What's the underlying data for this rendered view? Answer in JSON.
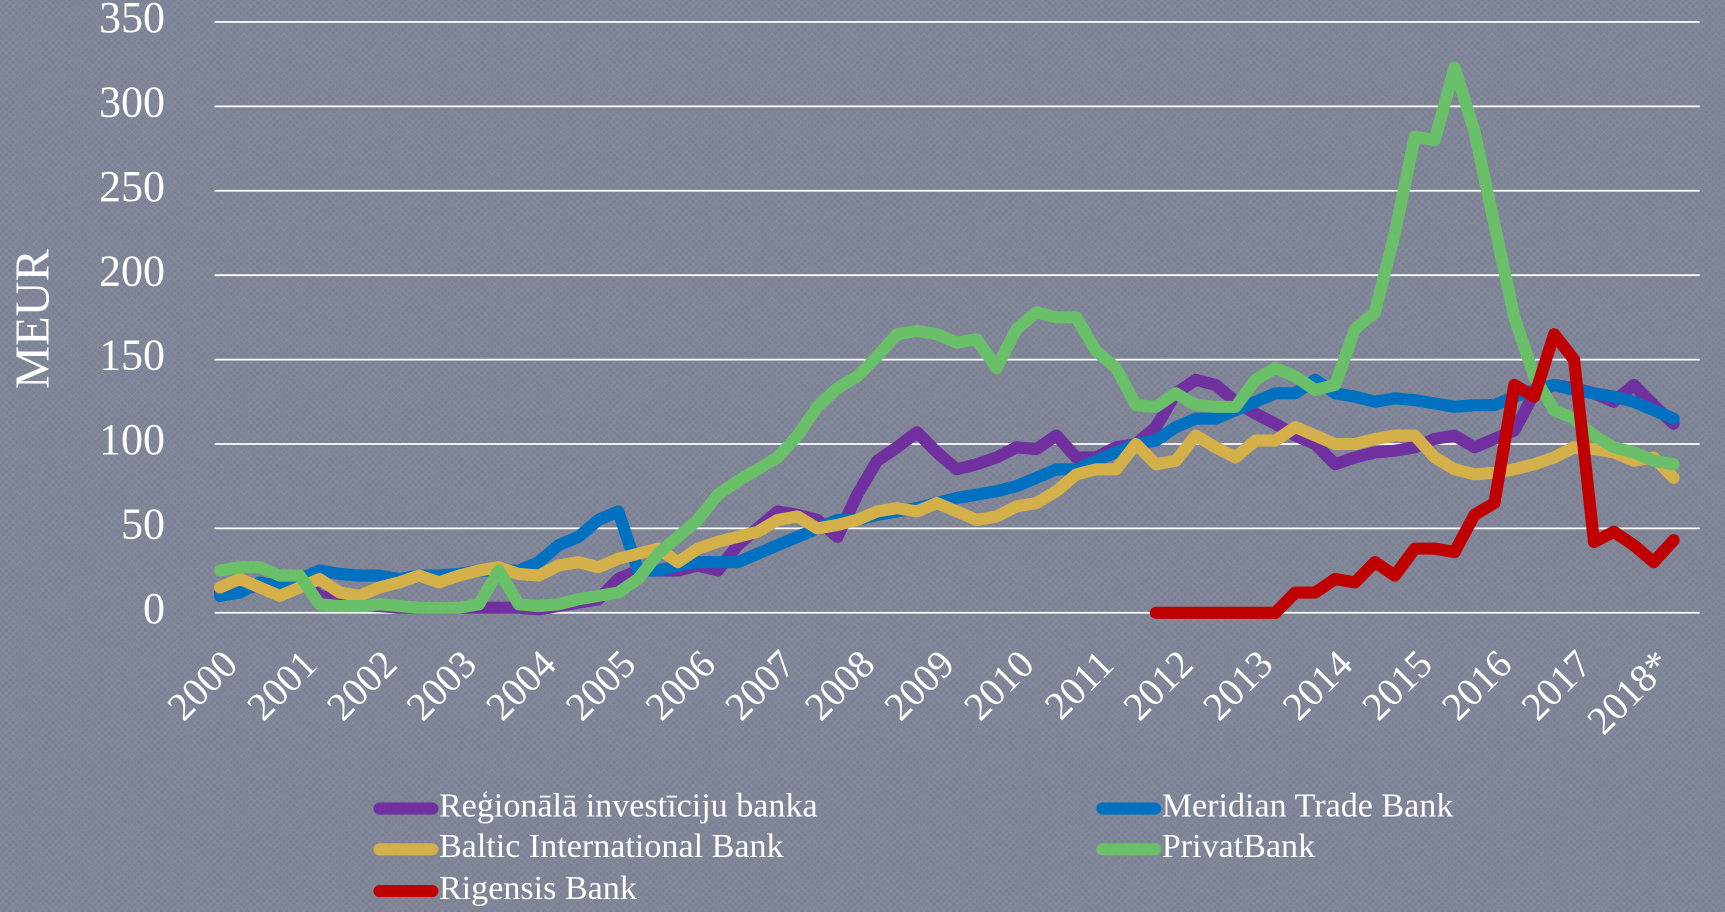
{
  "chart_data": {
    "type": "line",
    "y_label": "MEUR",
    "categories": [
      "2000",
      null,
      null,
      null,
      "2001",
      null,
      null,
      null,
      "2002",
      null,
      null,
      null,
      "2003",
      null,
      null,
      null,
      "2004",
      null,
      null,
      null,
      "2005",
      null,
      null,
      null,
      "2006",
      null,
      null,
      null,
      "2007",
      null,
      null,
      null,
      "2008",
      null,
      null,
      null,
      "2009",
      null,
      null,
      null,
      "2010",
      null,
      null,
      null,
      "2011",
      null,
      null,
      null,
      "2012",
      null,
      null,
      null,
      "2013",
      null,
      null,
      null,
      "2014",
      null,
      null,
      null,
      "2015",
      null,
      null,
      null,
      "2016",
      null,
      null,
      null,
      "2017",
      null,
      null,
      null,
      "2018*",
      null
    ],
    "ylim": [
      0,
      350
    ],
    "yticks": [
      0,
      50,
      100,
      150,
      200,
      250,
      300,
      350
    ],
    "grid": true,
    "legend": "bottom",
    "series": [
      {
        "name": "Reģionālā investīciju banka",
        "color": "#7030a0",
        "values": [
          12,
          14,
          16,
          18,
          20,
          10,
          8,
          5,
          4,
          3,
          3,
          3,
          3,
          3,
          3,
          3,
          2,
          4,
          6,
          8,
          20,
          25,
          25,
          25,
          28,
          25,
          40,
          50,
          60,
          58,
          55,
          45,
          70,
          90,
          98,
          107,
          95,
          85,
          88,
          92,
          98,
          97,
          105,
          92,
          92,
          98,
          100,
          110,
          130,
          138,
          135,
          125,
          118,
          112,
          105,
          100,
          88,
          92,
          95,
          96,
          98,
          103,
          105,
          98,
          103,
          108,
          130,
          135,
          133,
          130,
          125,
          135,
          123,
          112
        ]
      },
      {
        "name": "Meridian Trade Bank",
        "color": "#0070c0",
        "values": [
          10,
          12,
          18,
          15,
          20,
          25,
          23,
          22,
          22,
          20,
          22,
          22,
          23,
          25,
          25,
          25,
          30,
          40,
          45,
          55,
          60,
          25,
          25,
          28,
          30,
          30,
          30,
          35,
          40,
          45,
          50,
          55,
          55,
          58,
          60,
          62,
          65,
          68,
          70,
          72,
          75,
          80,
          85,
          85,
          90,
          95,
          100,
          102,
          110,
          115,
          115,
          120,
          125,
          130,
          130,
          138,
          130,
          128,
          125,
          127,
          126,
          124,
          122,
          123,
          123,
          128,
          132,
          135,
          132,
          130,
          128,
          125,
          120,
          115
        ]
      },
      {
        "name": "Baltic International Bank",
        "color": "#d4b04a",
        "values": [
          15,
          20,
          15,
          10,
          15,
          20,
          12,
          10,
          15,
          18,
          22,
          18,
          22,
          25,
          27,
          23,
          22,
          28,
          30,
          27,
          32,
          35,
          38,
          30,
          38,
          42,
          45,
          48,
          55,
          57,
          50,
          52,
          55,
          60,
          62,
          60,
          65,
          60,
          55,
          57,
          63,
          65,
          72,
          82,
          85,
          85,
          100,
          88,
          90,
          105,
          98,
          92,
          102,
          102,
          110,
          105,
          100,
          100,
          103,
          105,
          105,
          92,
          85,
          82,
          83,
          85,
          88,
          92,
          98,
          97,
          95,
          90,
          92,
          80
        ]
      },
      {
        "name": "PrivatBank",
        "color": "#6abf69",
        "values": [
          25,
          27,
          27,
          22,
          22,
          5,
          4,
          4,
          5,
          4,
          3,
          3,
          3,
          5,
          25,
          5,
          4,
          5,
          8,
          10,
          12,
          20,
          35,
          45,
          55,
          70,
          78,
          85,
          92,
          105,
          122,
          133,
          140,
          152,
          165,
          167,
          165,
          160,
          162,
          145,
          168,
          178,
          175,
          175,
          155,
          145,
          123,
          122,
          130,
          123,
          122,
          122,
          138,
          145,
          140,
          132,
          135,
          168,
          178,
          225,
          282,
          280,
          323,
          285,
          230,
          175,
          140,
          120,
          115,
          105,
          98,
          95,
          90,
          88
        ]
      },
      {
        "name": "Rigensis Bank",
        "color": "#c00000",
        "values": [
          null,
          null,
          null,
          null,
          null,
          null,
          null,
          null,
          null,
          null,
          null,
          null,
          null,
          null,
          null,
          null,
          null,
          null,
          null,
          null,
          null,
          null,
          null,
          null,
          null,
          null,
          null,
          null,
          null,
          null,
          null,
          null,
          null,
          null,
          null,
          null,
          null,
          null,
          null,
          null,
          null,
          null,
          null,
          null,
          null,
          null,
          null,
          0,
          0,
          0,
          0,
          0,
          0,
          0,
          12,
          12,
          20,
          18,
          30,
          22,
          38,
          38,
          36,
          58,
          65,
          135,
          128,
          165,
          150,
          42,
          48,
          40,
          30,
          43
        ]
      }
    ]
  }
}
